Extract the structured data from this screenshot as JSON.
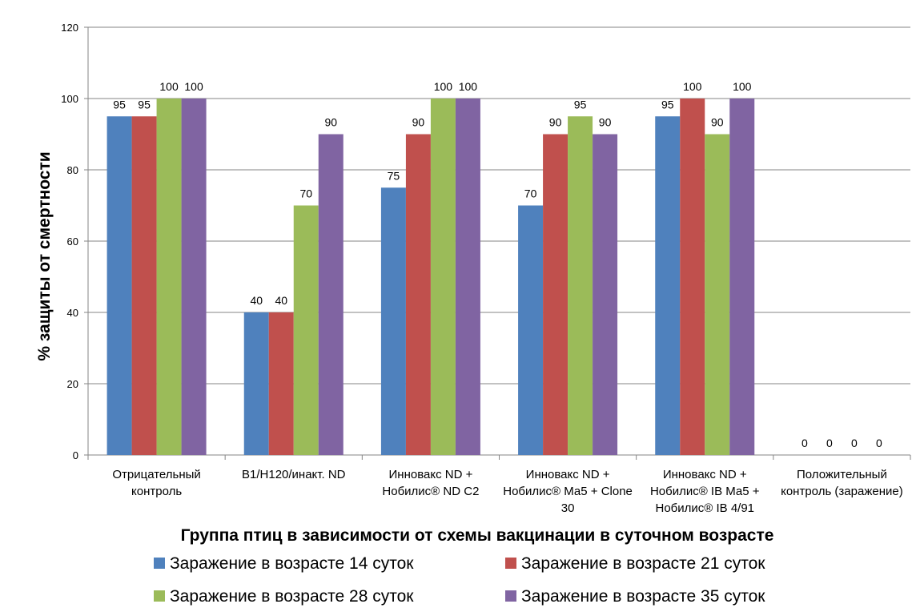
{
  "chart_data": {
    "type": "bar",
    "categories": [
      [
        "Отрицательный",
        "контроль"
      ],
      [
        "В1/Н120/инакт. ND"
      ],
      [
        "Инновакс ND +",
        "Нобилис® ND C2"
      ],
      [
        "Инновакс ND +",
        "Нобилис® Ма5 + Clone",
        "30"
      ],
      [
        "Инновакс ND +",
        "Нобилис® IB Ма5 +",
        "Нобилис® IB 4/91"
      ],
      [
        "Положительный",
        "контроль (заражение)"
      ]
    ],
    "series": [
      {
        "name": "Заражение в возрасте 14 суток",
        "color": "#4F81BD",
        "values": [
          95,
          40,
          75,
          70,
          95,
          0
        ]
      },
      {
        "name": "Заражение в возрасте 21 суток",
        "color": "#C0504D",
        "values": [
          95,
          40,
          90,
          90,
          100,
          0
        ]
      },
      {
        "name": "Заражение в возрасте 28 суток",
        "color": "#9BBB59",
        "values": [
          100,
          70,
          100,
          95,
          90,
          0
        ]
      },
      {
        "name": "Заражение в возрасте 35 суток",
        "color": "#8064A2",
        "values": [
          100,
          90,
          100,
          90,
          100,
          0
        ]
      }
    ],
    "xlabel": "Группа птиц в зависимости от схемы вакцинации в суточном возрасте",
    "ylabel": "% защиты от смертности",
    "ylim": [
      0,
      120
    ],
    "yticks": [
      0,
      20,
      40,
      60,
      80,
      100,
      120
    ],
    "grid": true,
    "legend": "bottom"
  }
}
